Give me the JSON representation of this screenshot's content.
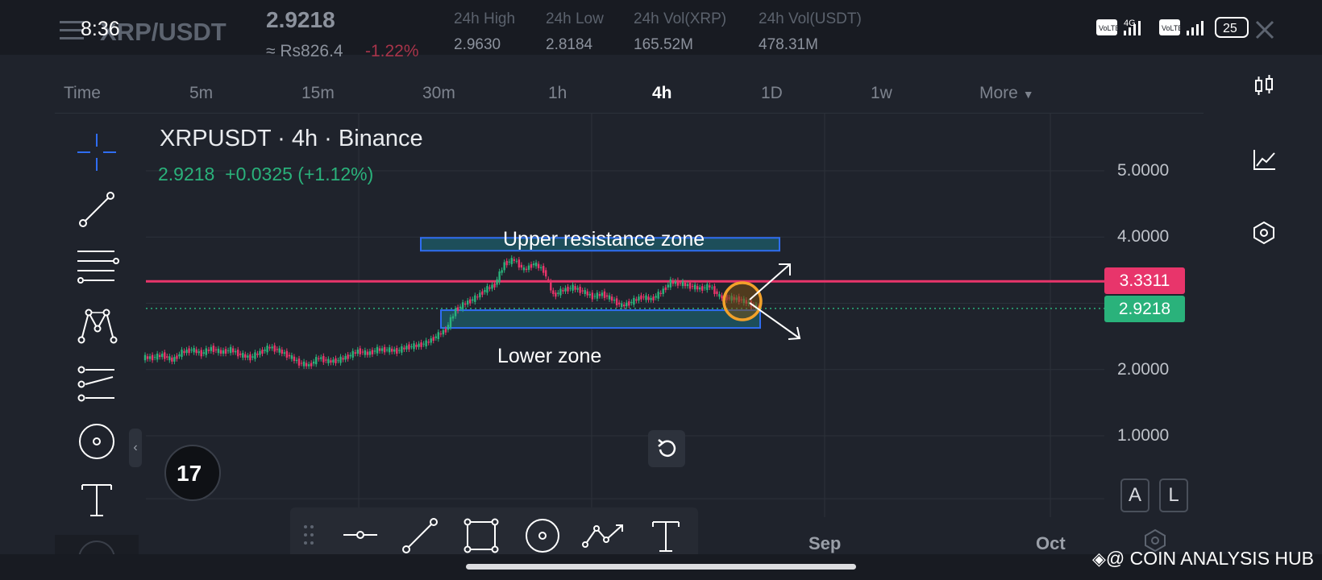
{
  "status": {
    "time": "8:36",
    "battery": "25",
    "network": "4G"
  },
  "header": {
    "pair": "XRP/USDT",
    "price": "2.9218",
    "price_local": "≈ Rs826.4",
    "change": "-1.22%",
    "stats": [
      {
        "label": "24h High",
        "value": "2.9630"
      },
      {
        "label": "24h Low",
        "value": "2.8184"
      },
      {
        "label": "24h Vol(XRP)",
        "value": "165.52M"
      },
      {
        "label": "24h Vol(USDT)",
        "value": "478.31M"
      }
    ]
  },
  "timeframes": [
    "Time",
    "5m",
    "15m",
    "30m",
    "1h",
    "4h",
    "1D",
    "1w",
    "More"
  ],
  "active_timeframe": "4h",
  "chart": {
    "title": "XRPUSDT · 4h · Binance",
    "last": "2.9218",
    "change": "+0.0325 (+1.12%)",
    "upper_label": "Upper resistance zone",
    "lower_label": "Lower zone",
    "resistance_badge": "3.3311",
    "last_badge": "2.9218",
    "resistance_color": "#e8356b",
    "last_color": "#2ab27b"
  },
  "chart_data": {
    "type": "line",
    "yticks": [
      "5.0000",
      "4.0000",
      "2.0000",
      "1.0000"
    ],
    "xticks": [
      "Sep",
      "Oct"
    ],
    "ylim": [
      0,
      5.6
    ],
    "resistance": 3.3311,
    "last": 2.9218,
    "series": [
      {
        "values": [
          2.18,
          2.22,
          2.14,
          2.26,
          2.3,
          2.24,
          2.32,
          2.26,
          2.3,
          2.22,
          2.18,
          2.26,
          2.34,
          2.28,
          2.2,
          2.1,
          2.06,
          2.18,
          2.12,
          2.14,
          2.2,
          2.28,
          2.24,
          2.3,
          2.3,
          2.28,
          2.34,
          2.36,
          2.4,
          2.5,
          2.6,
          2.9,
          3.0,
          3.08,
          3.2,
          3.28,
          3.6,
          3.66,
          3.5,
          3.6,
          3.5,
          3.12,
          3.2,
          3.24,
          3.18,
          3.1,
          3.14,
          3.06,
          2.96,
          3.02,
          3.1,
          3.06,
          3.16,
          3.32,
          3.3,
          3.26,
          3.22,
          3.26,
          3.1,
          3.08,
          3.06,
          3.0,
          2.92
        ]
      }
    ]
  },
  "toolbar_bottom": {
    "buttons": [
      "horizontal-line",
      "trend-line",
      "rectangle",
      "circle",
      "path",
      "text"
    ]
  },
  "floating": {
    "A": "A",
    "L": "L"
  },
  "watermark": "@ COIN ANALYSIS HUB"
}
